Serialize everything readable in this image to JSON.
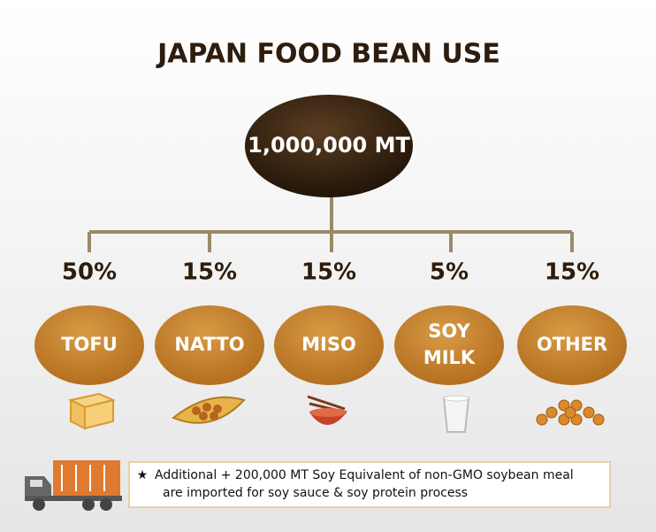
{
  "title": "JAPAN FOOD BEAN USE",
  "root": {
    "label": "1,000,000 MT"
  },
  "nodes": [
    {
      "percent": "50%",
      "label_lines": [
        "TOFU"
      ]
    },
    {
      "percent": "15%",
      "label_lines": [
        "NATTO"
      ]
    },
    {
      "percent": "15%",
      "label_lines": [
        "MISO"
      ]
    },
    {
      "percent": "5%",
      "label_lines": [
        "SOY",
        "MILK"
      ]
    },
    {
      "percent": "15%",
      "label_lines": [
        "OTHER"
      ]
    }
  ],
  "note": {
    "symbol": "★",
    "lines": [
      "Additional  + 200,000 MT Soy Equivalent of non-GMO soybean meal",
      "are imported for soy sauce & soy protein process"
    ]
  }
}
